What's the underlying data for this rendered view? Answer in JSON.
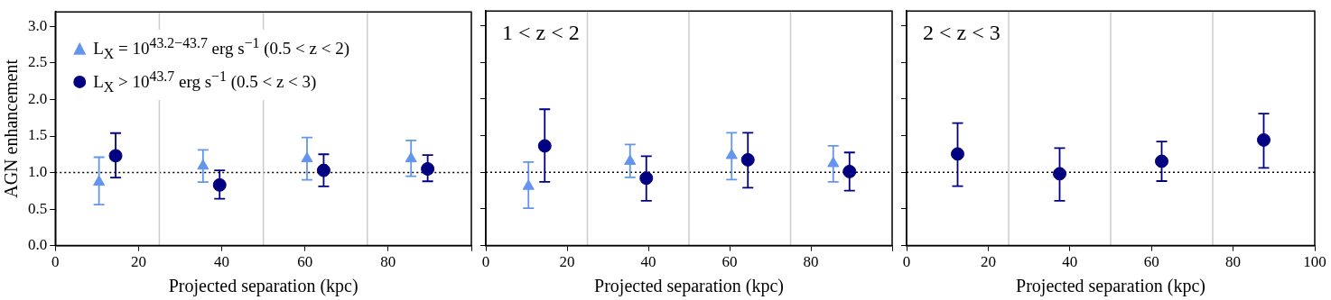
{
  "chart_data": [
    {
      "type": "scatter",
      "xlabel": "Projected separation (kpc)",
      "ylabel": "AGN enhancement",
      "xlim": [
        0,
        100
      ],
      "xticks": [
        0,
        20,
        40,
        60,
        80,
        {
          "value": 100,
          "label": null
        }
      ],
      "ylim": [
        0,
        3.2
      ],
      "yticks": [
        {
          "value": 0,
          "label": "0.0"
        },
        0.5,
        {
          "value": 1,
          "label": "1.0"
        },
        1.5,
        {
          "value": 2,
          "label": "2.0"
        },
        2.5,
        {
          "value": 3,
          "label": "3.0"
        }
      ],
      "legend": "top left",
      "ref_lines": [
        {
          "axis": "y",
          "value": 1,
          "color": "#000000",
          "line_style": "dotted"
        },
        {
          "axis": "x",
          "value": 25,
          "color": "#cccccc"
        },
        {
          "axis": "x",
          "value": 50,
          "color": "#cccccc"
        },
        {
          "axis": "x",
          "value": 75,
          "color": "#cccccc"
        }
      ],
      "series": [
        {
          "name": "L$_{X}$ = 10$^{43.2−43.7}$ erg s$^{−1}$ (0.5 < z < 2)",
          "color": "#6495ed",
          "marker": "triangle",
          "x": [
            10.5,
            35.5,
            60.5,
            85.5
          ],
          "values": [
            0.87,
            1.09,
            1.19,
            1.19
          ],
          "errors": [
            [
              0.56,
              1.21
            ],
            [
              0.87,
              1.31
            ],
            [
              0.9,
              1.48
            ],
            [
              0.95,
              1.44
            ]
          ]
        },
        {
          "name": "L$_{X}$ > 10$^{43.7}$ erg s$^{−1}$ (0.5 < z < 3)",
          "color": "#000080",
          "marker": "circle",
          "x": [
            14.5,
            39.5,
            64.5,
            89.5
          ],
          "values": [
            1.23,
            0.83,
            1.03,
            1.05
          ],
          "errors": [
            [
              0.93,
              1.54
            ],
            [
              0.64,
              1.03
            ],
            [
              0.81,
              1.25
            ],
            [
              0.88,
              1.24
            ]
          ]
        }
      ]
    },
    {
      "type": "scatter",
      "xlabel": "Projected separation (kpc)",
      "annotations": [
        "1 < z < 2"
      ],
      "xlim": [
        0,
        100
      ],
      "xticks": [
        0,
        20,
        40,
        60,
        80,
        {
          "value": 100,
          "label": null
        }
      ],
      "ylim": [
        0,
        3.2
      ],
      "yticks": [
        0,
        0.5,
        1,
        1.5,
        2,
        2.5,
        3
      ],
      "tick_labels": "x",
      "ref_lines": [
        {
          "axis": "y",
          "value": 1,
          "color": "#000000",
          "line_style": "dotted"
        },
        {
          "axis": "x",
          "value": 25,
          "color": "#cccccc"
        },
        {
          "axis": "x",
          "value": 50,
          "color": "#cccccc"
        },
        {
          "axis": "x",
          "value": 75,
          "color": "#cccccc"
        }
      ],
      "series": [
        {
          "color": "#6495ed",
          "marker": "triangle",
          "x": [
            10.5,
            35.5,
            60.5,
            85.5
          ],
          "values": [
            0.81,
            1.15,
            1.23,
            1.12
          ],
          "errors": [
            [
              0.51,
              1.14
            ],
            [
              0.93,
              1.38
            ],
            [
              0.9,
              1.54
            ],
            [
              0.87,
              1.36
            ]
          ]
        },
        {
          "color": "#000080",
          "marker": "circle",
          "x": [
            14.5,
            39.5,
            64.5,
            89.5
          ],
          "values": [
            1.36,
            0.92,
            1.17,
            1.01
          ],
          "errors": [
            [
              0.87,
              1.86
            ],
            [
              0.61,
              1.22
            ],
            [
              0.79,
              1.54
            ],
            [
              0.75,
              1.27
            ]
          ]
        }
      ]
    },
    {
      "type": "scatter",
      "xlabel": "Projected separation (kpc)",
      "annotations": [
        "2 < z < 3"
      ],
      "xlim": [
        0,
        100
      ],
      "xticks": [
        0,
        20,
        40,
        60,
        80,
        100
      ],
      "ylim": [
        0,
        3.2
      ],
      "yticks": [
        0,
        0.5,
        1,
        1.5,
        2,
        2.5,
        3
      ],
      "tick_labels": "x",
      "ref_lines": [
        {
          "axis": "y",
          "value": 1,
          "color": "#000000",
          "line_style": "dotted"
        },
        {
          "axis": "x",
          "value": 25,
          "color": "#cccccc"
        },
        {
          "axis": "x",
          "value": 50,
          "color": "#cccccc"
        },
        {
          "axis": "x",
          "value": 75,
          "color": "#cccccc"
        }
      ],
      "series": [
        {
          "color": "#000080",
          "marker": "circle",
          "x": [
            12.5,
            37.5,
            62.5,
            87.5
          ],
          "values": [
            1.25,
            0.98,
            1.15,
            1.44
          ],
          "errors": [
            [
              0.81,
              1.67
            ],
            [
              0.61,
              1.33
            ],
            [
              0.88,
              1.42
            ],
            [
              1.06,
              1.8
            ]
          ]
        }
      ]
    }
  ]
}
